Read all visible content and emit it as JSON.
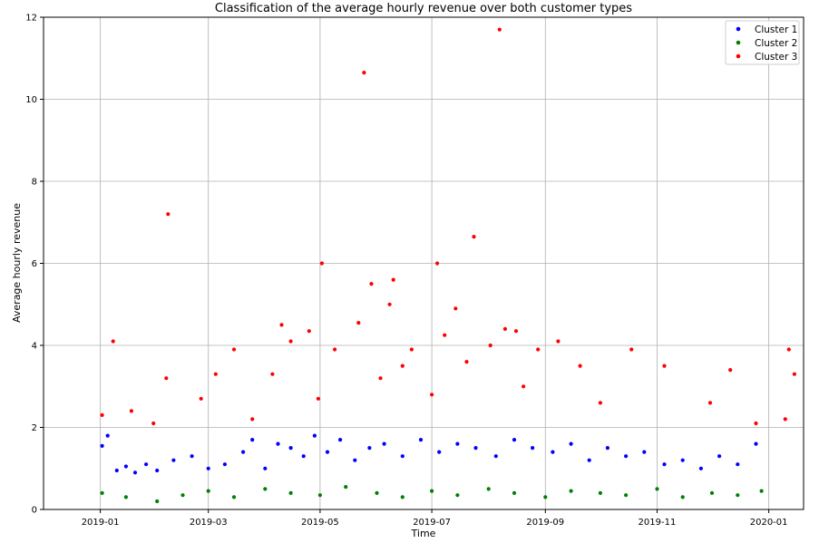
{
  "chart_data": {
    "type": "scatter",
    "title": "Classification of the average hourly revenue over both customer types",
    "xlabel": "Time",
    "ylabel": "Average hourly revenue",
    "xlim": [
      "2018-12-01",
      "2020-01-20"
    ],
    "ylim": [
      0,
      12
    ],
    "x_ticks": [
      "2019-01",
      "2019-03",
      "2019-05",
      "2019-07",
      "2019-09",
      "2019-11",
      "2020-01"
    ],
    "y_ticks": [
      0,
      2,
      4,
      6,
      8,
      10,
      12
    ],
    "grid": true,
    "legend_position": "top-right",
    "series": [
      {
        "name": "Cluster 1",
        "color": "#0000ff",
        "points": [
          [
            "2019-01-02",
            1.55
          ],
          [
            "2019-01-05",
            1.8
          ],
          [
            "2019-01-10",
            0.95
          ],
          [
            "2019-01-15",
            1.05
          ],
          [
            "2019-01-20",
            0.9
          ],
          [
            "2019-01-26",
            1.1
          ],
          [
            "2019-02-01",
            0.95
          ],
          [
            "2019-02-10",
            1.2
          ],
          [
            "2019-02-20",
            1.3
          ],
          [
            "2019-03-01",
            1.0
          ],
          [
            "2019-03-10",
            1.1
          ],
          [
            "2019-03-20",
            1.4
          ],
          [
            "2019-03-25",
            1.7
          ],
          [
            "2019-04-01",
            1.0
          ],
          [
            "2019-04-08",
            1.6
          ],
          [
            "2019-04-15",
            1.5
          ],
          [
            "2019-04-22",
            1.3
          ],
          [
            "2019-04-28",
            1.8
          ],
          [
            "2019-05-05",
            1.4
          ],
          [
            "2019-05-12",
            1.7
          ],
          [
            "2019-05-20",
            1.2
          ],
          [
            "2019-05-28",
            1.5
          ],
          [
            "2019-06-05",
            1.6
          ],
          [
            "2019-06-15",
            1.3
          ],
          [
            "2019-06-25",
            1.7
          ],
          [
            "2019-07-05",
            1.4
          ],
          [
            "2019-07-15",
            1.6
          ],
          [
            "2019-07-25",
            1.5
          ],
          [
            "2019-08-05",
            1.3
          ],
          [
            "2019-08-15",
            1.7
          ],
          [
            "2019-08-25",
            1.5
          ],
          [
            "2019-09-05",
            1.4
          ],
          [
            "2019-09-15",
            1.6
          ],
          [
            "2019-09-25",
            1.2
          ],
          [
            "2019-10-05",
            1.5
          ],
          [
            "2019-10-15",
            1.3
          ],
          [
            "2019-10-25",
            1.4
          ],
          [
            "2019-11-05",
            1.1
          ],
          [
            "2019-11-15",
            1.2
          ],
          [
            "2019-11-25",
            1.0
          ],
          [
            "2019-12-05",
            1.3
          ],
          [
            "2019-12-15",
            1.1
          ],
          [
            "2019-12-25",
            1.6
          ]
        ]
      },
      {
        "name": "Cluster 2",
        "color": "#008000",
        "points": [
          [
            "2019-01-02",
            0.4
          ],
          [
            "2019-01-15",
            0.3
          ],
          [
            "2019-02-01",
            0.2
          ],
          [
            "2019-02-15",
            0.35
          ],
          [
            "2019-03-01",
            0.45
          ],
          [
            "2019-03-15",
            0.3
          ],
          [
            "2019-04-01",
            0.5
          ],
          [
            "2019-04-15",
            0.4
          ],
          [
            "2019-05-01",
            0.35
          ],
          [
            "2019-05-15",
            0.55
          ],
          [
            "2019-06-01",
            0.4
          ],
          [
            "2019-06-15",
            0.3
          ],
          [
            "2019-07-01",
            0.45
          ],
          [
            "2019-07-15",
            0.35
          ],
          [
            "2019-08-01",
            0.5
          ],
          [
            "2019-08-15",
            0.4
          ],
          [
            "2019-09-01",
            0.3
          ],
          [
            "2019-09-15",
            0.45
          ],
          [
            "2019-10-01",
            0.4
          ],
          [
            "2019-10-15",
            0.35
          ],
          [
            "2019-11-01",
            0.5
          ],
          [
            "2019-11-15",
            0.3
          ],
          [
            "2019-12-01",
            0.4
          ],
          [
            "2019-12-15",
            0.35
          ],
          [
            "2019-12-28",
            0.45
          ]
        ]
      },
      {
        "name": "Cluster 3",
        "color": "#ff0000",
        "points": [
          [
            "2019-01-02",
            2.3
          ],
          [
            "2019-01-08",
            4.1
          ],
          [
            "2019-01-18",
            2.4
          ],
          [
            "2019-01-30",
            2.1
          ],
          [
            "2019-02-06",
            3.2
          ],
          [
            "2019-02-07",
            7.2
          ],
          [
            "2019-02-25",
            2.7
          ],
          [
            "2019-03-05",
            3.3
          ],
          [
            "2019-03-15",
            3.9
          ],
          [
            "2019-03-25",
            2.2
          ],
          [
            "2019-04-05",
            3.3
          ],
          [
            "2019-04-10",
            4.5
          ],
          [
            "2019-04-15",
            4.1
          ],
          [
            "2019-04-25",
            4.35
          ],
          [
            "2019-04-30",
            2.7
          ],
          [
            "2019-05-02",
            6.0
          ],
          [
            "2019-05-09",
            3.9
          ],
          [
            "2019-05-22",
            4.55
          ],
          [
            "2019-05-25",
            10.65
          ],
          [
            "2019-05-29",
            5.5
          ],
          [
            "2019-06-03",
            3.2
          ],
          [
            "2019-06-08",
            5.0
          ],
          [
            "2019-06-10",
            5.6
          ],
          [
            "2019-06-15",
            3.5
          ],
          [
            "2019-06-20",
            3.9
          ],
          [
            "2019-07-01",
            2.8
          ],
          [
            "2019-07-04",
            6.0
          ],
          [
            "2019-07-08",
            4.25
          ],
          [
            "2019-07-14",
            4.9
          ],
          [
            "2019-07-20",
            3.6
          ],
          [
            "2019-07-24",
            6.65
          ],
          [
            "2019-08-02",
            4.0
          ],
          [
            "2019-08-07",
            11.7
          ],
          [
            "2019-08-10",
            4.4
          ],
          [
            "2019-08-16",
            4.35
          ],
          [
            "2019-08-20",
            3.0
          ],
          [
            "2019-08-28",
            3.9
          ],
          [
            "2019-09-08",
            4.1
          ],
          [
            "2019-09-20",
            3.5
          ],
          [
            "2019-10-01",
            2.6
          ],
          [
            "2019-10-18",
            3.9
          ],
          [
            "2019-11-05",
            3.5
          ],
          [
            "2019-11-30",
            2.6
          ],
          [
            "2019-12-11",
            3.4
          ],
          [
            "2019-12-25",
            2.1
          ],
          [
            "2020-01-10",
            2.2
          ],
          [
            "2020-01-12",
            3.9
          ],
          [
            "2020-01-15",
            3.3
          ]
        ]
      }
    ]
  }
}
